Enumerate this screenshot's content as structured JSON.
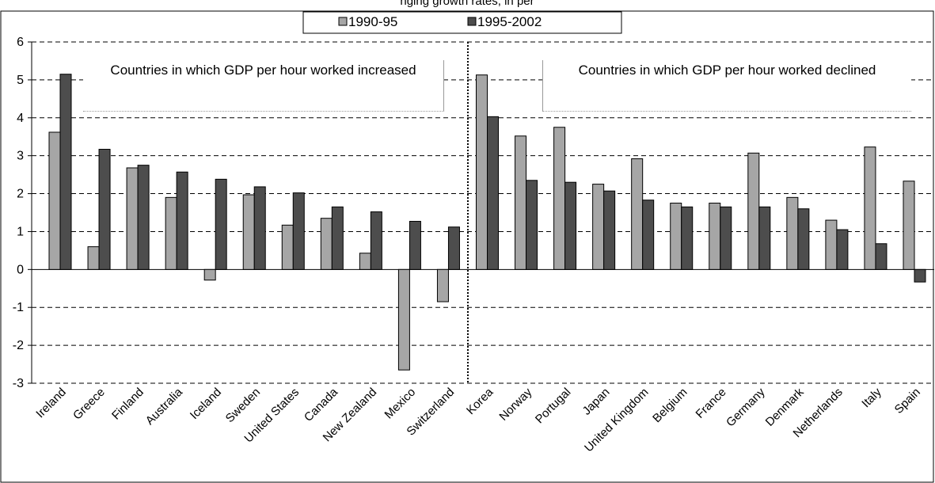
{
  "chart_data": {
    "type": "bar",
    "title": "nging growth rates, in per",
    "categories": [
      "Ireland",
      "Greece",
      "Finland",
      "Australia",
      "Iceland",
      "Sweden",
      "United States",
      "Canada",
      "New Zealand",
      "Mexico",
      "Switzerland",
      "Korea",
      "Norway",
      "Portugal",
      "Japan",
      "United Kingdom",
      "Belgium",
      "France",
      "Germany",
      "Denmark",
      "Netherlands",
      "Italy",
      "Spain"
    ],
    "series": [
      {
        "name": "1990-95",
        "color": "#a6a6a6",
        "values": [
          3.62,
          0.6,
          2.68,
          1.9,
          -0.28,
          1.97,
          1.17,
          1.35,
          0.43,
          -2.65,
          -0.85,
          5.13,
          3.52,
          3.75,
          2.25,
          2.92,
          1.75,
          1.75,
          3.07,
          1.9,
          1.3,
          3.23,
          2.33
        ]
      },
      {
        "name": "1995-2002",
        "color": "#4d4d4d",
        "values": [
          5.15,
          3.17,
          2.75,
          2.57,
          2.38,
          2.18,
          2.02,
          1.65,
          1.52,
          1.27,
          1.12,
          4.03,
          2.35,
          2.3,
          2.07,
          1.83,
          1.65,
          1.65,
          1.65,
          1.6,
          1.05,
          0.68,
          -0.33
        ]
      }
    ],
    "ylim": [
      -3,
      6
    ],
    "yticks": [
      -3,
      -2,
      -1,
      0,
      1,
      2,
      3,
      4,
      5,
      6
    ],
    "grid": true,
    "annotations": [
      "Countries in which GDP per hour worked increased",
      "Countries in which GDP per hour worked declined"
    ]
  }
}
